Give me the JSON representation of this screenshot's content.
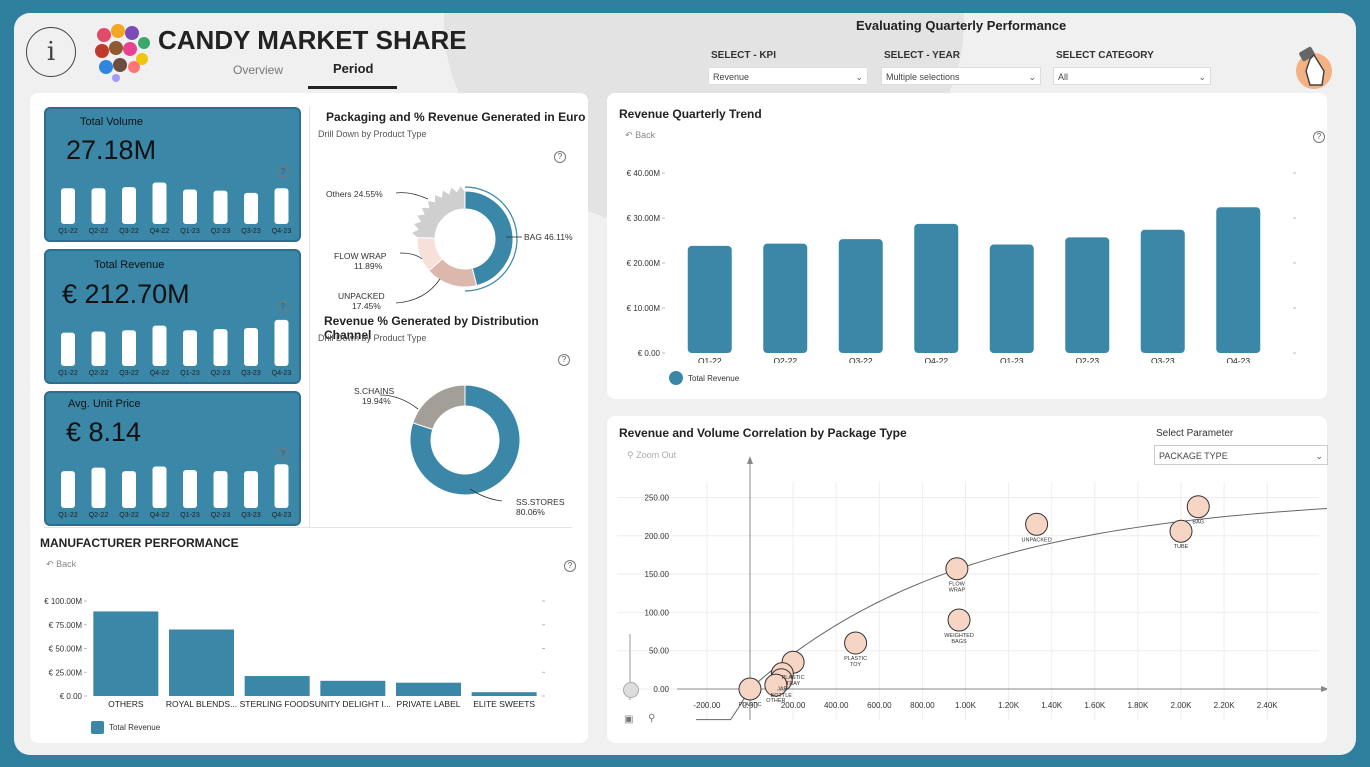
{
  "header": {
    "title": "CANDY MARKET SHARE",
    "nav_tabs": [
      {
        "label": "Overview",
        "active": false
      },
      {
        "label": "Period",
        "active": true
      }
    ],
    "subtitle": "Evaluating Quarterly Performance",
    "info_icon": "info-icon",
    "filters": [
      {
        "label": "SELECT - KPI",
        "value": "Revenue"
      },
      {
        "label": "SELECT - YEAR",
        "value": "Multiple selections"
      },
      {
        "label": "SELECT CATEGORY",
        "value": "All"
      }
    ]
  },
  "kpis": [
    {
      "label": "Total Volume",
      "value": "27.18M",
      "bars": [
        0.62,
        0.62,
        0.64,
        0.72,
        0.6,
        0.58,
        0.54,
        0.62
      ]
    },
    {
      "label": "Total Revenue",
      "value": "€ 212.70M",
      "bars": [
        0.58,
        0.6,
        0.62,
        0.7,
        0.62,
        0.64,
        0.66,
        0.8
      ]
    },
    {
      "label": "Avg. Unit Price",
      "value": "€ 8.14",
      "bars": [
        0.64,
        0.7,
        0.64,
        0.72,
        0.66,
        0.64,
        0.64,
        0.76
      ]
    }
  ],
  "kpi_quarters": [
    "Q1-22",
    "Q2-22",
    "Q3-22",
    "Q4-22",
    "Q1-23",
    "Q2-23",
    "Q3-23",
    "Q4-23"
  ],
  "packaging": {
    "title": "Packaging and % Revenue Generated in Euro",
    "subtitle": "Drill Down by Product Type",
    "slices": [
      {
        "name": "BAG",
        "label": "BAG 46.11%",
        "value": 46.11,
        "color": "#3a87a8"
      },
      {
        "name": "UNPACKED",
        "label_1": "UNPACKED",
        "label_2": "17.45%",
        "value": 17.45,
        "color": "#dcb7ac"
      },
      {
        "name": "FLOW WRAP",
        "label_1": "FLOW WRAP",
        "label_2": "11.89%",
        "value": 11.89,
        "color": "#f6e0d8"
      },
      {
        "name": "Others",
        "label": "Others 24.55%",
        "value": 24.55,
        "color": "#cfcfcf"
      }
    ]
  },
  "distribution": {
    "title": "Revenue % Generated by Distribution Channel",
    "subtitle": "Drill Down by Product Type",
    "slices": [
      {
        "name": "SS.STORES",
        "label_1": "SS.STORES",
        "label_2": "80.06%",
        "value": 80.06,
        "color": "#3a87a8"
      },
      {
        "name": "S.CHAINS",
        "label_1": "S.CHAINS",
        "label_2": "19.94%",
        "value": 19.94,
        "color": "#a49e99"
      }
    ]
  },
  "manufacturer": {
    "title": "MANUFACTURER PERFORMANCE",
    "back": "Back",
    "legend": "Total Revenue",
    "y_ticks": [
      "€ 100.00M",
      "€ 75.00M",
      "€ 50.00M",
      "€ 25.00M",
      "€ 0.00"
    ],
    "categories": [
      "OTHERS",
      "ROYAL BLENDS...",
      "STERLING FOODS",
      "UNITY DELIGHT I...",
      "PRIVATE LABEL",
      "ELITE SWEETS"
    ],
    "values": [
      89,
      70,
      21,
      16,
      14,
      4
    ],
    "ylim": [
      0,
      100
    ]
  },
  "trend": {
    "title": "Revenue Quarterly Trend",
    "back": "Back",
    "legend": "Total Revenue",
    "y_ticks": [
      "€ 40.00M",
      "€ 30.00M",
      "€ 20.00M",
      "€ 10.00M",
      "€ 0.00"
    ],
    "categories": [
      "Q1-22",
      "Q2-22",
      "Q3-22",
      "Q4-22",
      "Q1-23",
      "Q2-23",
      "Q3-23",
      "Q4-23"
    ],
    "values": [
      23.8,
      24.3,
      25.3,
      28.7,
      24.1,
      25.7,
      27.4,
      32.4
    ],
    "ylim": [
      0,
      40
    ]
  },
  "scatter": {
    "title": "Revenue and Volume Correlation by Package Type",
    "zoom_out": "Zoom Out",
    "param_label": "Select Parameter",
    "param_value": "PACKAGE TYPE",
    "x_ticks": [
      "-200.00",
      "0.00",
      "200.00",
      "400.00",
      "600.00",
      "800.00",
      "1.00K",
      "1.20K",
      "1.40K",
      "1.60K",
      "1.80K",
      "2.00K",
      "2.20K",
      "2.40K"
    ],
    "x_tick_values": [
      -200,
      0,
      200,
      400,
      600,
      800,
      1000,
      1200,
      1400,
      1600,
      1800,
      2000,
      2200,
      2400
    ],
    "y_ticks": [
      "250.00",
      "200.00",
      "150.00",
      "100.00",
      "50.00",
      "0.00"
    ],
    "y_tick_values": [
      250,
      200,
      150,
      100,
      50,
      0
    ],
    "points": [
      {
        "name": "BAG",
        "label_1": "BAG",
        "label_2": "",
        "x": 2080,
        "y": 238
      },
      {
        "name": "TUBE",
        "label_1": "TUBE",
        "label_2": "",
        "x": 2000,
        "y": 206
      },
      {
        "name": "UNPACKED",
        "label_1": "UNPACKED",
        "label_2": "",
        "x": 1330,
        "y": 215
      },
      {
        "name": "FLOW WRAP",
        "label_1": "FLOW",
        "label_2": "WRAP",
        "x": 960,
        "y": 157
      },
      {
        "name": "WEIGHTED BAGS",
        "label_1": "WEIGHTED",
        "label_2": "BAGS",
        "x": 970,
        "y": 90
      },
      {
        "name": "PLASTIC TOY",
        "label_1": "PLASTIC",
        "label_2": "TOY",
        "x": 490,
        "y": 60
      },
      {
        "name": "PLASTIC TRAY",
        "label_1": "PLASTIC",
        "label_2": "TRAY",
        "x": 200,
        "y": 35
      },
      {
        "name": "JAR",
        "label_1": "JAR",
        "label_2": "",
        "x": 150,
        "y": 20
      },
      {
        "name": "BOTTLE",
        "label_1": "BOTTLE",
        "label_2": "",
        "x": 145,
        "y": 12
      },
      {
        "name": "OTHER",
        "label_1": "OTHER",
        "label_2": "",
        "x": 120,
        "y": 5
      },
      {
        "name": "PLASTIC",
        "label_1": "PLASTIC",
        "label_2": "",
        "x": 0,
        "y": 0
      }
    ]
  }
}
